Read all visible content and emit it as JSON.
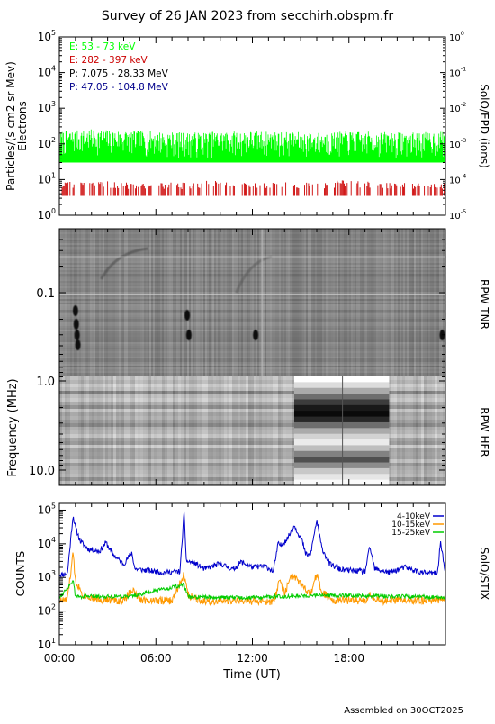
{
  "title": "Survey of 26 JAN 2023 from secchirh.obspm.fr",
  "footer": "Assembled on 30OCT2025",
  "epd_panel": {
    "ylabel_left_line1": "Particles/(s cm2 sr Mev)",
    "ylabel_left_line2": "Electrons",
    "ylabel_right": "SolO/EPD (ions)",
    "left_ticks": [
      {
        "base": "10",
        "exp": "0"
      },
      {
        "base": "10",
        "exp": "1"
      },
      {
        "base": "10",
        "exp": "2"
      },
      {
        "base": "10",
        "exp": "3"
      },
      {
        "base": "10",
        "exp": "4"
      },
      {
        "base": "10",
        "exp": "5"
      }
    ],
    "right_ticks": [
      {
        "base": "10",
        "exp": "-5"
      },
      {
        "base": "10",
        "exp": "-4"
      },
      {
        "base": "10",
        "exp": "-3"
      },
      {
        "base": "10",
        "exp": "-2"
      },
      {
        "base": "10",
        "exp": "-1"
      },
      {
        "base": "10",
        "exp": "0"
      }
    ],
    "legend": [
      {
        "label": "E: 53 - 73 keV",
        "color": "#00ff00"
      },
      {
        "label": "E: 282 - 397 keV",
        "color": "#cc0000"
      },
      {
        "label": "P: 7.075 - 28.33 MeV",
        "color": "#000000"
      },
      {
        "label": "P: 47.05 - 104.8 MeV",
        "color": "#00008b"
      }
    ]
  },
  "rpw_panel": {
    "ylabel": "Frequency (MHz)",
    "ticks": [
      "0.1",
      "1.0",
      "10.0"
    ],
    "tnr_label": "RPW TNR",
    "hfr_label": "RPW HFR"
  },
  "stix_panel": {
    "ylabel": "COUNTS",
    "right_label": "SolO/STIX",
    "ticks": [
      {
        "base": "10",
        "exp": "1"
      },
      {
        "base": "10",
        "exp": "2"
      },
      {
        "base": "10",
        "exp": "3"
      },
      {
        "base": "10",
        "exp": "4"
      },
      {
        "base": "10",
        "exp": "5"
      }
    ],
    "legend": [
      {
        "label": "4-10keV",
        "color": "#0000cc"
      },
      {
        "label": "10-15keV",
        "color": "#ff9900"
      },
      {
        "label": "15-25keV",
        "color": "#00cc00"
      }
    ]
  },
  "xaxis": {
    "label": "Time (UT)",
    "ticks": [
      "00:00",
      "06:00",
      "12:00",
      "18:00"
    ]
  },
  "chart_data": [
    {
      "type": "line",
      "title": "",
      "ylabel": "Particles/(s cm2 sr Mev) Electrons",
      "yscale": "log",
      "ylim": [
        1,
        100000
      ],
      "xlim": [
        0,
        24
      ],
      "series": [
        {
          "name": "E: 53 - 73 keV",
          "color": "#00ff00",
          "x": [
            0,
            2,
            4,
            6,
            8,
            10,
            12,
            14,
            16,
            18,
            20,
            22,
            24
          ],
          "values": [
            70,
            80,
            75,
            70,
            65,
            70,
            72,
            68,
            65,
            70,
            68,
            66,
            70
          ]
        },
        {
          "name": "E: 282 - 397 keV",
          "color": "#cc0000",
          "x": [
            0,
            2,
            4,
            6,
            8,
            10,
            12,
            14,
            16,
            18,
            20,
            22,
            24
          ],
          "values": [
            6,
            7,
            6,
            6,
            6,
            7,
            6,
            6,
            6,
            7,
            6,
            6,
            6
          ]
        }
      ]
    },
    {
      "type": "heatmap",
      "title": "",
      "ylabel": "Frequency (MHz)",
      "yscale": "log",
      "xlim": [
        0,
        24
      ]
    },
    {
      "type": "line",
      "title": "",
      "ylabel": "COUNTS",
      "yscale": "log",
      "ylim": [
        10,
        100000
      ],
      "xlim": [
        0,
        24
      ],
      "series": [
        {
          "name": "4-10keV",
          "color": "#0000cc",
          "x": [
            0,
            0.5,
            0.85,
            1.0,
            1.3,
            1.8,
            2.5,
            2.9,
            3.3,
            4.0,
            4.5,
            4.7,
            5.5,
            6.5,
            7.5,
            7.75,
            7.9,
            8.3,
            9,
            10,
            10.8,
            11.3,
            12,
            12.8,
            13.3,
            13.6,
            13.8,
            14.2,
            14.6,
            15.1,
            15.3,
            15.6,
            16.0,
            16.3,
            16.8,
            17.5,
            19,
            19.3,
            19.6,
            20.5,
            21.5,
            22.5,
            23.5,
            23.7,
            24
          ],
          "values": [
            1200,
            1300,
            70000,
            30000,
            12000,
            7000,
            6000,
            11000,
            5000,
            2500,
            5500,
            1800,
            1600,
            1400,
            1500,
            80000,
            3000,
            2800,
            1800,
            2600,
            1700,
            2900,
            2000,
            2200,
            1500,
            10000,
            9000,
            15000,
            35000,
            12000,
            5000,
            4500,
            50000,
            8000,
            2500,
            1700,
            1500,
            8000,
            1800,
            1400,
            2000,
            1400,
            1300,
            12000,
            1200
          ]
        },
        {
          "name": "10-15keV",
          "color": "#ff9900",
          "x": [
            0,
            0.5,
            0.85,
            1.0,
            1.5,
            2.5,
            4.0,
            4.5,
            5,
            7,
            7.75,
            8.0,
            9,
            12,
            13.3,
            13.7,
            14.0,
            14.5,
            15.0,
            15.6,
            16.0,
            16.3,
            17,
            19,
            19.3,
            20,
            24
          ],
          "values": [
            200,
            220,
            5000,
            800,
            300,
            220,
            200,
            450,
            220,
            200,
            1200,
            300,
            200,
            200,
            180,
            800,
            350,
            1200,
            600,
            300,
            1300,
            350,
            220,
            200,
            300,
            200,
            220
          ]
        },
        {
          "name": "15-25keV",
          "color": "#00cc00",
          "x": [
            0,
            0.85,
            1.0,
            4.5,
            7.75,
            8.0,
            12,
            16.0,
            24
          ],
          "values": [
            250,
            800,
            270,
            280,
            600,
            260,
            255,
            300,
            260
          ]
        }
      ]
    }
  ]
}
